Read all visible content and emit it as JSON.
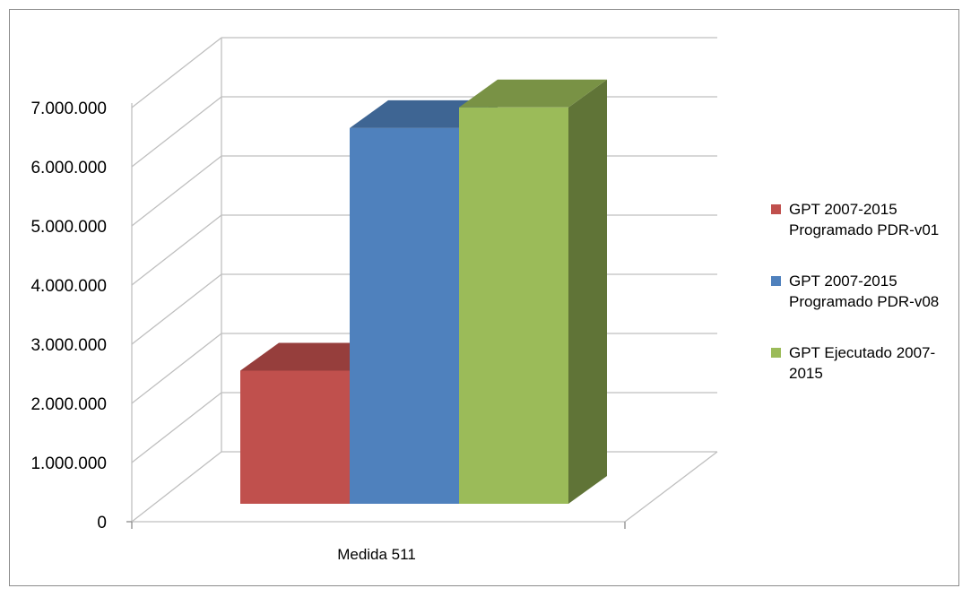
{
  "chart_data": {
    "type": "bar",
    "categories": [
      "Medida 511"
    ],
    "series": [
      {
        "name": "GPT 2007-2015 Programado PDR-v01",
        "values": [
          2250000
        ],
        "color": "#C0504D"
      },
      {
        "name": "GPT 2007-2015 Programado PDR-v08",
        "values": [
          6350000
        ],
        "color": "#4F81BD"
      },
      {
        "name": "GPT Ejecutado 2007-2015",
        "values": [
          6700000
        ],
        "color": "#9BBB59"
      }
    ],
    "yticks": [
      "0",
      "1.000.000",
      "2.000.000",
      "3.000.000",
      "4.000.000",
      "5.000.000",
      "6.000.000",
      "7.000.000"
    ],
    "ylim": [
      0,
      7000000
    ],
    "grid": true,
    "legend_position": "right",
    "style": "3d"
  },
  "legend": {
    "items": [
      {
        "line1": "GPT 2007-2015",
        "line2": "Programado PDR-v01"
      },
      {
        "line1": "GPT 2007-2015",
        "line2": "Programado PDR-v08"
      },
      {
        "line1": "GPT Ejecutado 2007-",
        "line2": "2015"
      }
    ]
  }
}
